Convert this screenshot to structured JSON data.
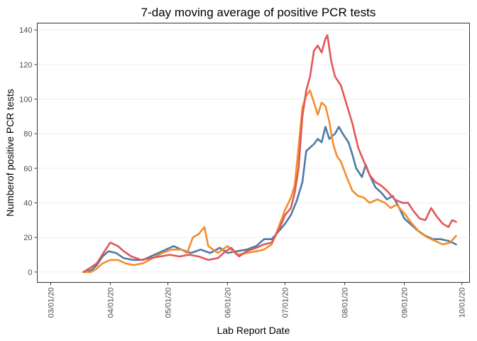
{
  "chart_data": {
    "type": "line",
    "title": "7-day moving average of positive PCR tests",
    "xlabel": "Lab Report Date",
    "ylabel": "Numberof positive PCR tests",
    "x_is_date": true,
    "xlim": [
      "2020-02-23",
      "2020-10-05"
    ],
    "ylim": [
      -6,
      144
    ],
    "x_ticks": [
      {
        "date": "2020-03-01",
        "label": "03/01/20"
      },
      {
        "date": "2020-04-01",
        "label": "04/01/20"
      },
      {
        "date": "2020-05-01",
        "label": "05/01/20"
      },
      {
        "date": "2020-06-01",
        "label": "06/01/20"
      },
      {
        "date": "2020-07-01",
        "label": "07/01/20"
      },
      {
        "date": "2020-08-01",
        "label": "08/01/20"
      },
      {
        "date": "2020-09-01",
        "label": "09/01/20"
      },
      {
        "date": "2020-10-01",
        "label": "10/01/20"
      }
    ],
    "y_ticks": [
      0,
      20,
      40,
      60,
      80,
      100,
      120,
      140
    ],
    "grid": "horizontal",
    "legend": "none",
    "series": [
      {
        "color": "#4e79a7",
        "points": [
          [
            "2020-03-18",
            0
          ],
          [
            "2020-03-22",
            1
          ],
          [
            "2020-03-25",
            4
          ],
          [
            "2020-03-28",
            9
          ],
          [
            "2020-03-31",
            12
          ],
          [
            "2020-04-04",
            11
          ],
          [
            "2020-04-08",
            8
          ],
          [
            "2020-04-13",
            7
          ],
          [
            "2020-04-18",
            7
          ],
          [
            "2020-04-24",
            10
          ],
          [
            "2020-04-30",
            13
          ],
          [
            "2020-05-04",
            15
          ],
          [
            "2020-05-08",
            13
          ],
          [
            "2020-05-13",
            11
          ],
          [
            "2020-05-18",
            13
          ],
          [
            "2020-05-23",
            11
          ],
          [
            "2020-05-28",
            14
          ],
          [
            "2020-06-01",
            11
          ],
          [
            "2020-06-06",
            12
          ],
          [
            "2020-06-11",
            13
          ],
          [
            "2020-06-16",
            15
          ],
          [
            "2020-06-20",
            19
          ],
          [
            "2020-06-24",
            19
          ],
          [
            "2020-06-28",
            24
          ],
          [
            "2020-07-01",
            28
          ],
          [
            "2020-07-04",
            33
          ],
          [
            "2020-07-07",
            41
          ],
          [
            "2020-07-10",
            52
          ],
          [
            "2020-07-12",
            70
          ],
          [
            "2020-07-14",
            72
          ],
          [
            "2020-07-16",
            74
          ],
          [
            "2020-07-18",
            77
          ],
          [
            "2020-07-20",
            75
          ],
          [
            "2020-07-22",
            84
          ],
          [
            "2020-07-24",
            77
          ],
          [
            "2020-07-27",
            80
          ],
          [
            "2020-07-29",
            84
          ],
          [
            "2020-07-31",
            80
          ],
          [
            "2020-08-03",
            75
          ],
          [
            "2020-08-05",
            68
          ],
          [
            "2020-08-07",
            60
          ],
          [
            "2020-08-10",
            55
          ],
          [
            "2020-08-12",
            62
          ],
          [
            "2020-08-14",
            56
          ],
          [
            "2020-08-17",
            49
          ],
          [
            "2020-08-20",
            46
          ],
          [
            "2020-08-23",
            42
          ],
          [
            "2020-08-26",
            44
          ],
          [
            "2020-08-29",
            38
          ],
          [
            "2020-09-01",
            31
          ],
          [
            "2020-09-04",
            28
          ],
          [
            "2020-09-08",
            24
          ],
          [
            "2020-09-12",
            21
          ],
          [
            "2020-09-16",
            19
          ],
          [
            "2020-09-20",
            19
          ],
          [
            "2020-09-24",
            18
          ],
          [
            "2020-09-28",
            16
          ]
        ]
      },
      {
        "color": "#f28e2b",
        "points": [
          [
            "2020-03-18",
            0
          ],
          [
            "2020-03-22",
            0
          ],
          [
            "2020-03-25",
            2
          ],
          [
            "2020-03-28",
            5
          ],
          [
            "2020-04-01",
            7
          ],
          [
            "2020-04-05",
            7
          ],
          [
            "2020-04-09",
            5
          ],
          [
            "2020-04-13",
            4
          ],
          [
            "2020-04-18",
            5
          ],
          [
            "2020-04-23",
            8
          ],
          [
            "2020-04-28",
            11
          ],
          [
            "2020-05-03",
            13
          ],
          [
            "2020-05-08",
            13
          ],
          [
            "2020-05-11",
            11
          ],
          [
            "2020-05-14",
            20
          ],
          [
            "2020-05-17",
            22
          ],
          [
            "2020-05-20",
            26
          ],
          [
            "2020-05-22",
            15
          ],
          [
            "2020-05-27",
            11
          ],
          [
            "2020-06-01",
            15
          ],
          [
            "2020-06-06",
            10
          ],
          [
            "2020-06-11",
            11
          ],
          [
            "2020-06-16",
            12
          ],
          [
            "2020-06-20",
            13
          ],
          [
            "2020-06-24",
            16
          ],
          [
            "2020-06-28",
            27
          ],
          [
            "2020-07-01",
            36
          ],
          [
            "2020-07-04",
            43
          ],
          [
            "2020-07-06",
            50
          ],
          [
            "2020-07-08",
            72
          ],
          [
            "2020-07-10",
            95
          ],
          [
            "2020-07-12",
            102
          ],
          [
            "2020-07-14",
            105
          ],
          [
            "2020-07-16",
            98
          ],
          [
            "2020-07-18",
            91
          ],
          [
            "2020-07-20",
            98
          ],
          [
            "2020-07-22",
            96
          ],
          [
            "2020-07-24",
            87
          ],
          [
            "2020-07-26",
            74
          ],
          [
            "2020-07-28",
            67
          ],
          [
            "2020-07-30",
            64
          ],
          [
            "2020-08-02",
            55
          ],
          [
            "2020-08-05",
            47
          ],
          [
            "2020-08-08",
            44
          ],
          [
            "2020-08-11",
            43
          ],
          [
            "2020-08-14",
            40
          ],
          [
            "2020-08-18",
            42
          ],
          [
            "2020-08-22",
            40
          ],
          [
            "2020-08-25",
            37
          ],
          [
            "2020-08-28",
            39
          ],
          [
            "2020-09-01",
            34
          ],
          [
            "2020-09-05",
            28
          ],
          [
            "2020-09-09",
            23
          ],
          [
            "2020-09-13",
            20
          ],
          [
            "2020-09-17",
            18
          ],
          [
            "2020-09-21",
            16
          ],
          [
            "2020-09-25",
            17
          ],
          [
            "2020-09-28",
            21
          ]
        ]
      },
      {
        "color": "#e15759",
        "points": [
          [
            "2020-03-18",
            0
          ],
          [
            "2020-03-21",
            2
          ],
          [
            "2020-03-25",
            5
          ],
          [
            "2020-03-29",
            12
          ],
          [
            "2020-04-01",
            17
          ],
          [
            "2020-04-05",
            15
          ],
          [
            "2020-04-08",
            12
          ],
          [
            "2020-04-12",
            9
          ],
          [
            "2020-04-17",
            7
          ],
          [
            "2020-04-22",
            8
          ],
          [
            "2020-04-27",
            9
          ],
          [
            "2020-05-02",
            10
          ],
          [
            "2020-05-07",
            9
          ],
          [
            "2020-05-12",
            10
          ],
          [
            "2020-05-17",
            9
          ],
          [
            "2020-05-22",
            7
          ],
          [
            "2020-05-27",
            8
          ],
          [
            "2020-05-31",
            12
          ],
          [
            "2020-06-03",
            14
          ],
          [
            "2020-06-07",
            9
          ],
          [
            "2020-06-11",
            12
          ],
          [
            "2020-06-16",
            14
          ],
          [
            "2020-06-20",
            16
          ],
          [
            "2020-06-24",
            17
          ],
          [
            "2020-06-28",
            25
          ],
          [
            "2020-07-01",
            33
          ],
          [
            "2020-07-04",
            37
          ],
          [
            "2020-07-06",
            46
          ],
          [
            "2020-07-08",
            60
          ],
          [
            "2020-07-10",
            90
          ],
          [
            "2020-07-12",
            105
          ],
          [
            "2020-07-14",
            113
          ],
          [
            "2020-07-16",
            128
          ],
          [
            "2020-07-18",
            131
          ],
          [
            "2020-07-20",
            127
          ],
          [
            "2020-07-22",
            135
          ],
          [
            "2020-07-23",
            137
          ],
          [
            "2020-07-25",
            122
          ],
          [
            "2020-07-27",
            113
          ],
          [
            "2020-07-30",
            108
          ],
          [
            "2020-08-02",
            97
          ],
          [
            "2020-08-05",
            86
          ],
          [
            "2020-08-08",
            72
          ],
          [
            "2020-08-11",
            64
          ],
          [
            "2020-08-14",
            56
          ],
          [
            "2020-08-17",
            52
          ],
          [
            "2020-08-20",
            50
          ],
          [
            "2020-08-23",
            47
          ],
          [
            "2020-08-27",
            42
          ],
          [
            "2020-08-31",
            40
          ],
          [
            "2020-09-03",
            40
          ],
          [
            "2020-09-06",
            35
          ],
          [
            "2020-09-09",
            31
          ],
          [
            "2020-09-12",
            30
          ],
          [
            "2020-09-15",
            37
          ],
          [
            "2020-09-18",
            32
          ],
          [
            "2020-09-21",
            28
          ],
          [
            "2020-09-24",
            26
          ],
          [
            "2020-09-26",
            30
          ],
          [
            "2020-09-28",
            29
          ]
        ]
      }
    ]
  }
}
